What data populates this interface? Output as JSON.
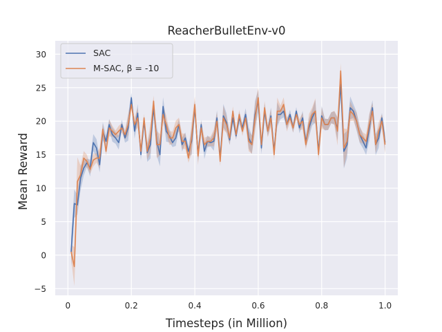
{
  "chart_data": {
    "type": "line",
    "title": "ReacherBulletEnv-v0",
    "xlabel": "Timesteps (in Million)",
    "ylabel": "Mean Reward",
    "xlim": [
      -0.04,
      1.04
    ],
    "ylim": [
      -6,
      32
    ],
    "xticks": [
      0,
      0.2,
      0.4,
      0.6,
      0.8,
      1.0
    ],
    "xtick_labels": [
      "0",
      "0.2",
      "0.4",
      "0.6",
      "0.8",
      "1.0"
    ],
    "yticks": [
      -5,
      0,
      5,
      10,
      15,
      20,
      25,
      30
    ],
    "ytick_labels": [
      "−5",
      "0",
      "5",
      "10",
      "15",
      "20",
      "25",
      "30"
    ],
    "grid": true,
    "legend_position": "top-left",
    "background": "#eaeaf2",
    "grid_color": "#ffffff",
    "x": [
      0.01,
      0.02,
      0.03,
      0.04,
      0.05,
      0.06,
      0.07,
      0.08,
      0.09,
      0.1,
      0.11,
      0.12,
      0.13,
      0.14,
      0.15,
      0.16,
      0.17,
      0.18,
      0.19,
      0.2,
      0.21,
      0.22,
      0.23,
      0.24,
      0.25,
      0.26,
      0.27,
      0.28,
      0.29,
      0.3,
      0.31,
      0.32,
      0.33,
      0.34,
      0.35,
      0.36,
      0.37,
      0.38,
      0.39,
      0.4,
      0.41,
      0.42,
      0.43,
      0.44,
      0.45,
      0.46,
      0.47,
      0.48,
      0.49,
      0.5,
      0.51,
      0.52,
      0.53,
      0.54,
      0.55,
      0.56,
      0.57,
      0.58,
      0.59,
      0.6,
      0.61,
      0.62,
      0.63,
      0.64,
      0.65,
      0.66,
      0.67,
      0.68,
      0.69,
      0.7,
      0.71,
      0.72,
      0.73,
      0.74,
      0.75,
      0.76,
      0.77,
      0.78,
      0.79,
      0.8,
      0.81,
      0.82,
      0.83,
      0.84,
      0.85,
      0.86,
      0.87,
      0.88,
      0.89,
      0.9,
      0.91,
      0.92,
      0.93,
      0.94,
      0.95,
      0.96,
      0.97,
      0.98,
      0.99,
      1.0
    ],
    "series": [
      {
        "name": "SAC",
        "color": "#4c72b0",
        "values": [
          0.5,
          7.7,
          7.5,
          11.5,
          13.0,
          13.8,
          13.0,
          16.8,
          16.0,
          13.5,
          18.5,
          17.0,
          19.5,
          18.0,
          17.5,
          16.8,
          19.5,
          17.5,
          19.0,
          23.5,
          18.5,
          21.2,
          15.0,
          20.0,
          15.3,
          16.5,
          22.0,
          17.0,
          15.0,
          22.2,
          18.5,
          17.8,
          16.8,
          17.5,
          19.5,
          16.5,
          17.5,
          15.5,
          17.0,
          22.0,
          15.0,
          19.5,
          15.5,
          17.0,
          16.8,
          17.0,
          20.5,
          14.5,
          20.8,
          19.8,
          17.2,
          20.5,
          17.8,
          20.5,
          19.0,
          21.0,
          17.5,
          16.5,
          21.0,
          23.0,
          16.0,
          21.5,
          18.5,
          20.8,
          15.5,
          21.0,
          21.0,
          21.5,
          19.5,
          21.0,
          19.0,
          21.5,
          19.0,
          20.5,
          17.0,
          19.0,
          20.5,
          21.5,
          15.5,
          20.8,
          19.5,
          19.5,
          20.5,
          20.5,
          18.8,
          25.5,
          15.5,
          16.5,
          22.0,
          21.5,
          20.0,
          18.0,
          17.0,
          16.0,
          19.0,
          22.0,
          16.5,
          17.5,
          20.5,
          16.8
        ]
      },
      {
        "name": "M-SAC, β = -10",
        "color": "#dd8452",
        "values": [
          0.5,
          -1.7,
          11.0,
          12.0,
          14.5,
          14.0,
          12.8,
          14.2,
          14.5,
          14.5,
          18.8,
          15.5,
          19.0,
          18.5,
          18.0,
          18.5,
          19.0,
          18.0,
          19.5,
          22.5,
          19.5,
          20.5,
          15.5,
          20.5,
          15.5,
          17.5,
          23.0,
          16.5,
          16.5,
          21.0,
          19.5,
          17.5,
          17.5,
          19.0,
          19.5,
          17.0,
          17.0,
          14.5,
          17.5,
          22.5,
          14.8,
          19.0,
          16.5,
          17.0,
          17.0,
          17.5,
          20.0,
          14.0,
          20.5,
          19.5,
          17.5,
          21.5,
          18.0,
          21.0,
          18.5,
          20.5,
          17.0,
          16.5,
          20.5,
          23.5,
          16.5,
          22.0,
          18.5,
          20.5,
          15.0,
          21.5,
          21.5,
          22.5,
          19.5,
          20.5,
          19.0,
          21.0,
          19.5,
          20.0,
          16.5,
          19.5,
          21.0,
          21.5,
          15.0,
          20.5,
          19.5,
          19.5,
          20.5,
          20.5,
          18.5,
          27.5,
          16.0,
          17.0,
          21.5,
          21.0,
          20.0,
          18.0,
          17.5,
          17.0,
          19.5,
          21.5,
          16.5,
          18.5,
          20.0,
          16.5
        ]
      }
    ]
  }
}
